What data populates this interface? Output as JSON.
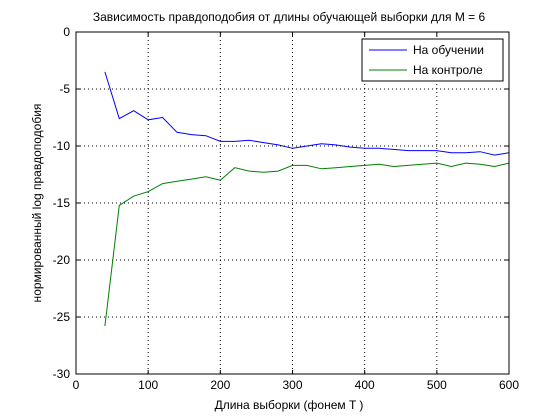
{
  "chart_data": {
    "type": "line",
    "title": "Зависимость правдоподобия от длины обучающей выборки для M = 6",
    "xlabel": "Длина выборки (фонем T )",
    "ylabel": "нормированный log правдоподобия",
    "xlim": [
      0,
      600
    ],
    "ylim": [
      -30,
      0
    ],
    "xticks": [
      0,
      100,
      200,
      300,
      400,
      500,
      600
    ],
    "xtick_labels": [
      "0",
      "100",
      "200",
      "300",
      "400",
      "500",
      "600"
    ],
    "yticks": [
      0,
      -5,
      -10,
      -15,
      -20,
      -25,
      -30
    ],
    "ytick_labels": [
      "0",
      "-5",
      "-10",
      "-15",
      "-20",
      "-25",
      "-30"
    ],
    "grid": true,
    "legend_position": "top-right",
    "series": [
      {
        "name": "На обучении",
        "color": "#0000ff",
        "x": [
          40,
          60,
          80,
          100,
          120,
          140,
          160,
          180,
          200,
          220,
          240,
          260,
          280,
          300,
          320,
          340,
          360,
          380,
          400,
          420,
          440,
          460,
          480,
          500,
          520,
          540,
          560,
          580,
          600
        ],
        "y": [
          -3.5,
          -7.6,
          -6.9,
          -7.7,
          -7.5,
          -8.8,
          -9.0,
          -9.1,
          -9.6,
          -9.6,
          -9.5,
          -9.7,
          -9.9,
          -10.2,
          -10.0,
          -9.8,
          -9.9,
          -10.1,
          -10.2,
          -10.2,
          -10.3,
          -10.4,
          -10.4,
          -10.4,
          -10.6,
          -10.6,
          -10.5,
          -10.8,
          -10.6
        ]
      },
      {
        "name": "На контроле",
        "color": "#008000",
        "x": [
          40,
          60,
          80,
          100,
          120,
          140,
          160,
          180,
          200,
          220,
          240,
          260,
          280,
          300,
          320,
          340,
          360,
          380,
          400,
          420,
          440,
          460,
          480,
          500,
          520,
          540,
          560,
          580,
          600
        ],
        "y": [
          -25.8,
          -15.2,
          -14.4,
          -14.0,
          -13.3,
          -13.1,
          -12.9,
          -12.7,
          -13.0,
          -11.9,
          -12.2,
          -12.3,
          -12.2,
          -11.7,
          -11.7,
          -12.0,
          -11.9,
          -11.8,
          -11.7,
          -11.6,
          -11.8,
          -11.7,
          -11.6,
          -11.5,
          -11.8,
          -11.5,
          -11.6,
          -11.8,
          -11.5
        ]
      }
    ]
  }
}
